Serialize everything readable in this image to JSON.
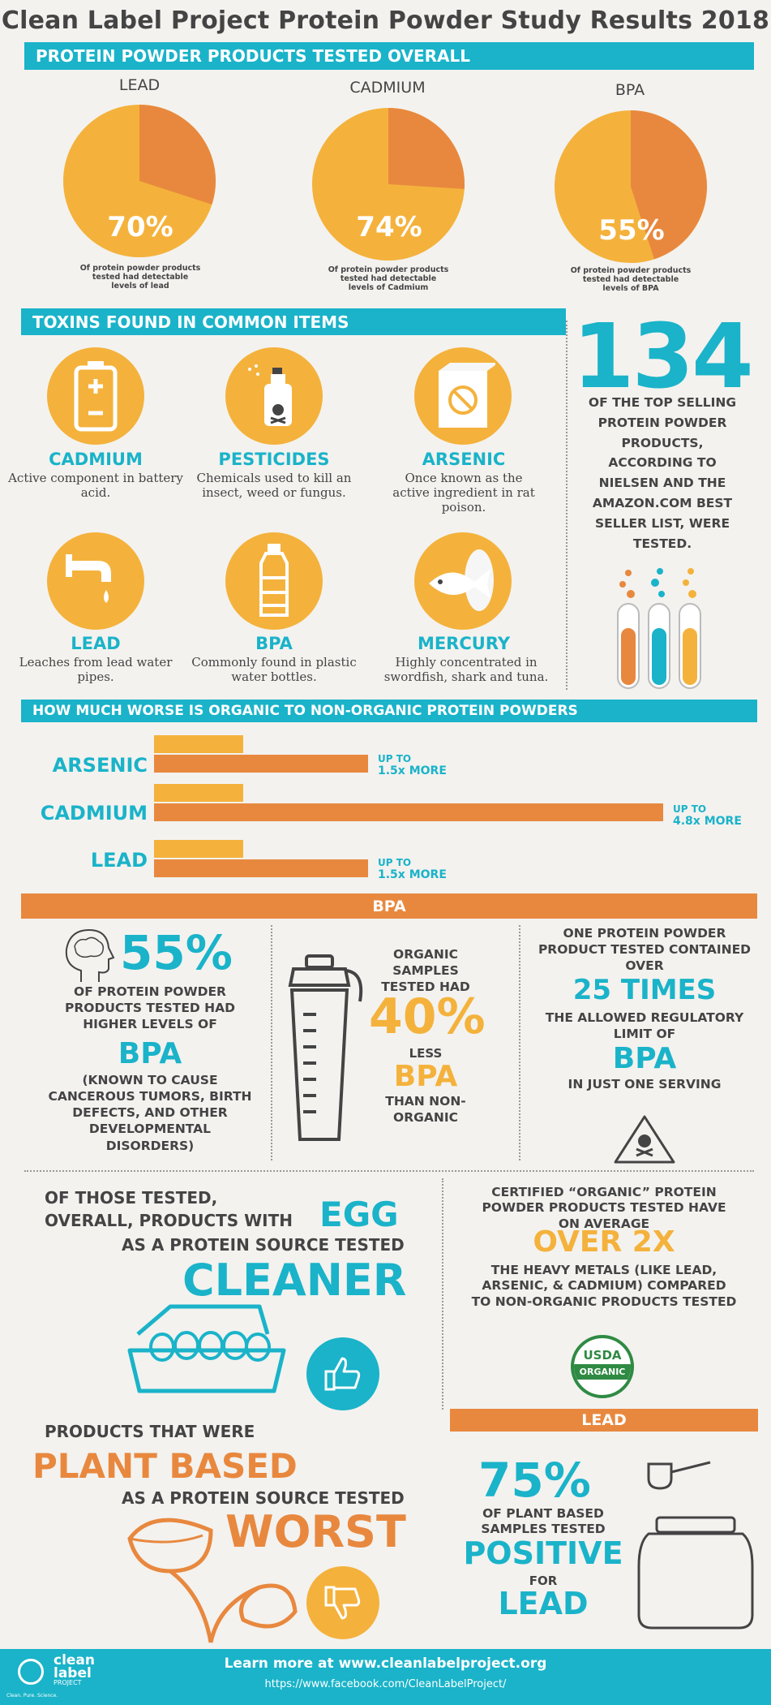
{
  "title": "Clean Label Project Protein Powder Study Results 2018",
  "section1": {
    "header": "PROTEIN POWDER PRODUCTS TESTED OVERALL",
    "pies": [
      {
        "label": "LEAD",
        "percent": "70%",
        "value": 70,
        "caption": "Of protein powder products tested had detectable levels of lead"
      },
      {
        "label": "CADMIUM",
        "percent": "74%",
        "value": 74,
        "caption": "Of protein powder products tested had detectable levels of Cadmium"
      },
      {
        "label": "BPA",
        "percent": "55%",
        "value": 55,
        "caption": "Of protein powder products tested had detectable levels of BPA"
      }
    ]
  },
  "section2": {
    "header": "TOXINS FOUND IN COMMON ITEMS",
    "items": [
      {
        "name": "CADMIUM",
        "desc": "Active component in battery acid.",
        "icon": "battery-icon"
      },
      {
        "name": "PESTICIDES",
        "desc": "Chemicals used to kill an insect, weed or fungus.",
        "icon": "spray-can-icon"
      },
      {
        "name": "ARSENIC",
        "desc": "Once known as the active ingredient in rat poison.",
        "icon": "no-rat-box-icon"
      },
      {
        "name": "LEAD",
        "desc": "Leaches from lead water pipes.",
        "icon": "faucet-icon"
      },
      {
        "name": "BPA",
        "desc": "Commonly found in plastic water bottles.",
        "icon": "water-bottle-icon"
      },
      {
        "name": "MERCURY",
        "desc": "Highly concentrated in swordfish, shark and tuna.",
        "icon": "fish-can-icon"
      }
    ],
    "stat_number": "134",
    "stat_text": "OF THE TOP SELLING PROTEIN POWDER PRODUCTS, ACCORDING TO NIELSEN AND THE AMAZON.COM BEST SELLER LIST, WERE TESTED."
  },
  "section3": {
    "header": "HOW MUCH WORSE IS ORGANIC TO NON-ORGANIC PROTEIN POWDERS",
    "bars": [
      {
        "label": "ARSENIC",
        "note_line1": "UP TO",
        "note_line2": "1.5x MORE",
        "multiplier": 1.5
      },
      {
        "label": "CADMIUM",
        "note_line1": "UP TO",
        "note_line2": "4.8x MORE",
        "multiplier": 4.8
      },
      {
        "label": "LEAD",
        "note_line1": "UP TO",
        "note_line2": "1.5x MORE",
        "multiplier": 1.5
      }
    ]
  },
  "section4": {
    "header": "BPA",
    "col1": {
      "percent": "55%",
      "text1": "OF PROTEIN POWDER PRODUCTS TESTED HAD HIGHER LEVELS OF",
      "keyword": "BPA",
      "text2": "(KNOWN TO CAUSE CANCEROUS TUMORS, BIRTH DEFECTS, AND OTHER DEVELOPMENTAL DISORDERS)"
    },
    "col2": {
      "text1": "ORGANIC SAMPLES TESTED HAD",
      "percent": "40%",
      "less": "LESS",
      "keyword": "BPA",
      "text2": "THAN NON-ORGANIC"
    },
    "col3": {
      "text1": "ONE PROTEIN POWDER PRODUCT TESTED CONTAINED OVER",
      "times": "25 TIMES",
      "text2": "THE ALLOWED REGULATORY LIMIT OF",
      "keyword": "BPA",
      "text3": "IN JUST ONE SERVING"
    }
  },
  "section5": {
    "left": {
      "line1": "OF THOSE TESTED,",
      "line2": "OVERALL, PRODUCTS WITH",
      "egg": "EGG",
      "line3": "AS A PROTEIN SOURCE TESTED",
      "cleaner": "CLEANER",
      "line4": "PRODUCTS THAT WERE",
      "plant": "PLANT BASED",
      "line5": "AS A PROTEIN SOURCE TESTED",
      "worst": "WORST"
    },
    "right": {
      "text1": "CERTIFIED “ORGANIC” PROTEIN POWDER PRODUCTS TESTED HAVE ON AVERAGE",
      "over": "OVER 2X",
      "text2": "THE HEAVY METALS (LIKE LEAD, ARSENIC, & CADMIUM) COMPARED TO NON-ORGANIC PRODUCTS TESTED",
      "usda_top": "USDA",
      "usda_bottom": "ORGANIC",
      "lead_header": "LEAD",
      "percent": "75%",
      "text3": "OF PLANT BASED SAMPLES TESTED",
      "positive": "POSITIVE",
      "for": "FOR",
      "lead": "LEAD"
    }
  },
  "footer": {
    "logo_line1": "clean",
    "logo_line2": "label",
    "logo_line3": "PROJECT",
    "logo_tagline": "Clean. Pure. Science.",
    "line1": "Learn more at www.cleanlabelproject.org",
    "line2": "https://www.facebook.com/CleanLabelProject/"
  },
  "colors": {
    "teal": "#1ab3c9",
    "orange": "#e8883e",
    "yellow": "#f4b23c",
    "dark": "#444444"
  }
}
